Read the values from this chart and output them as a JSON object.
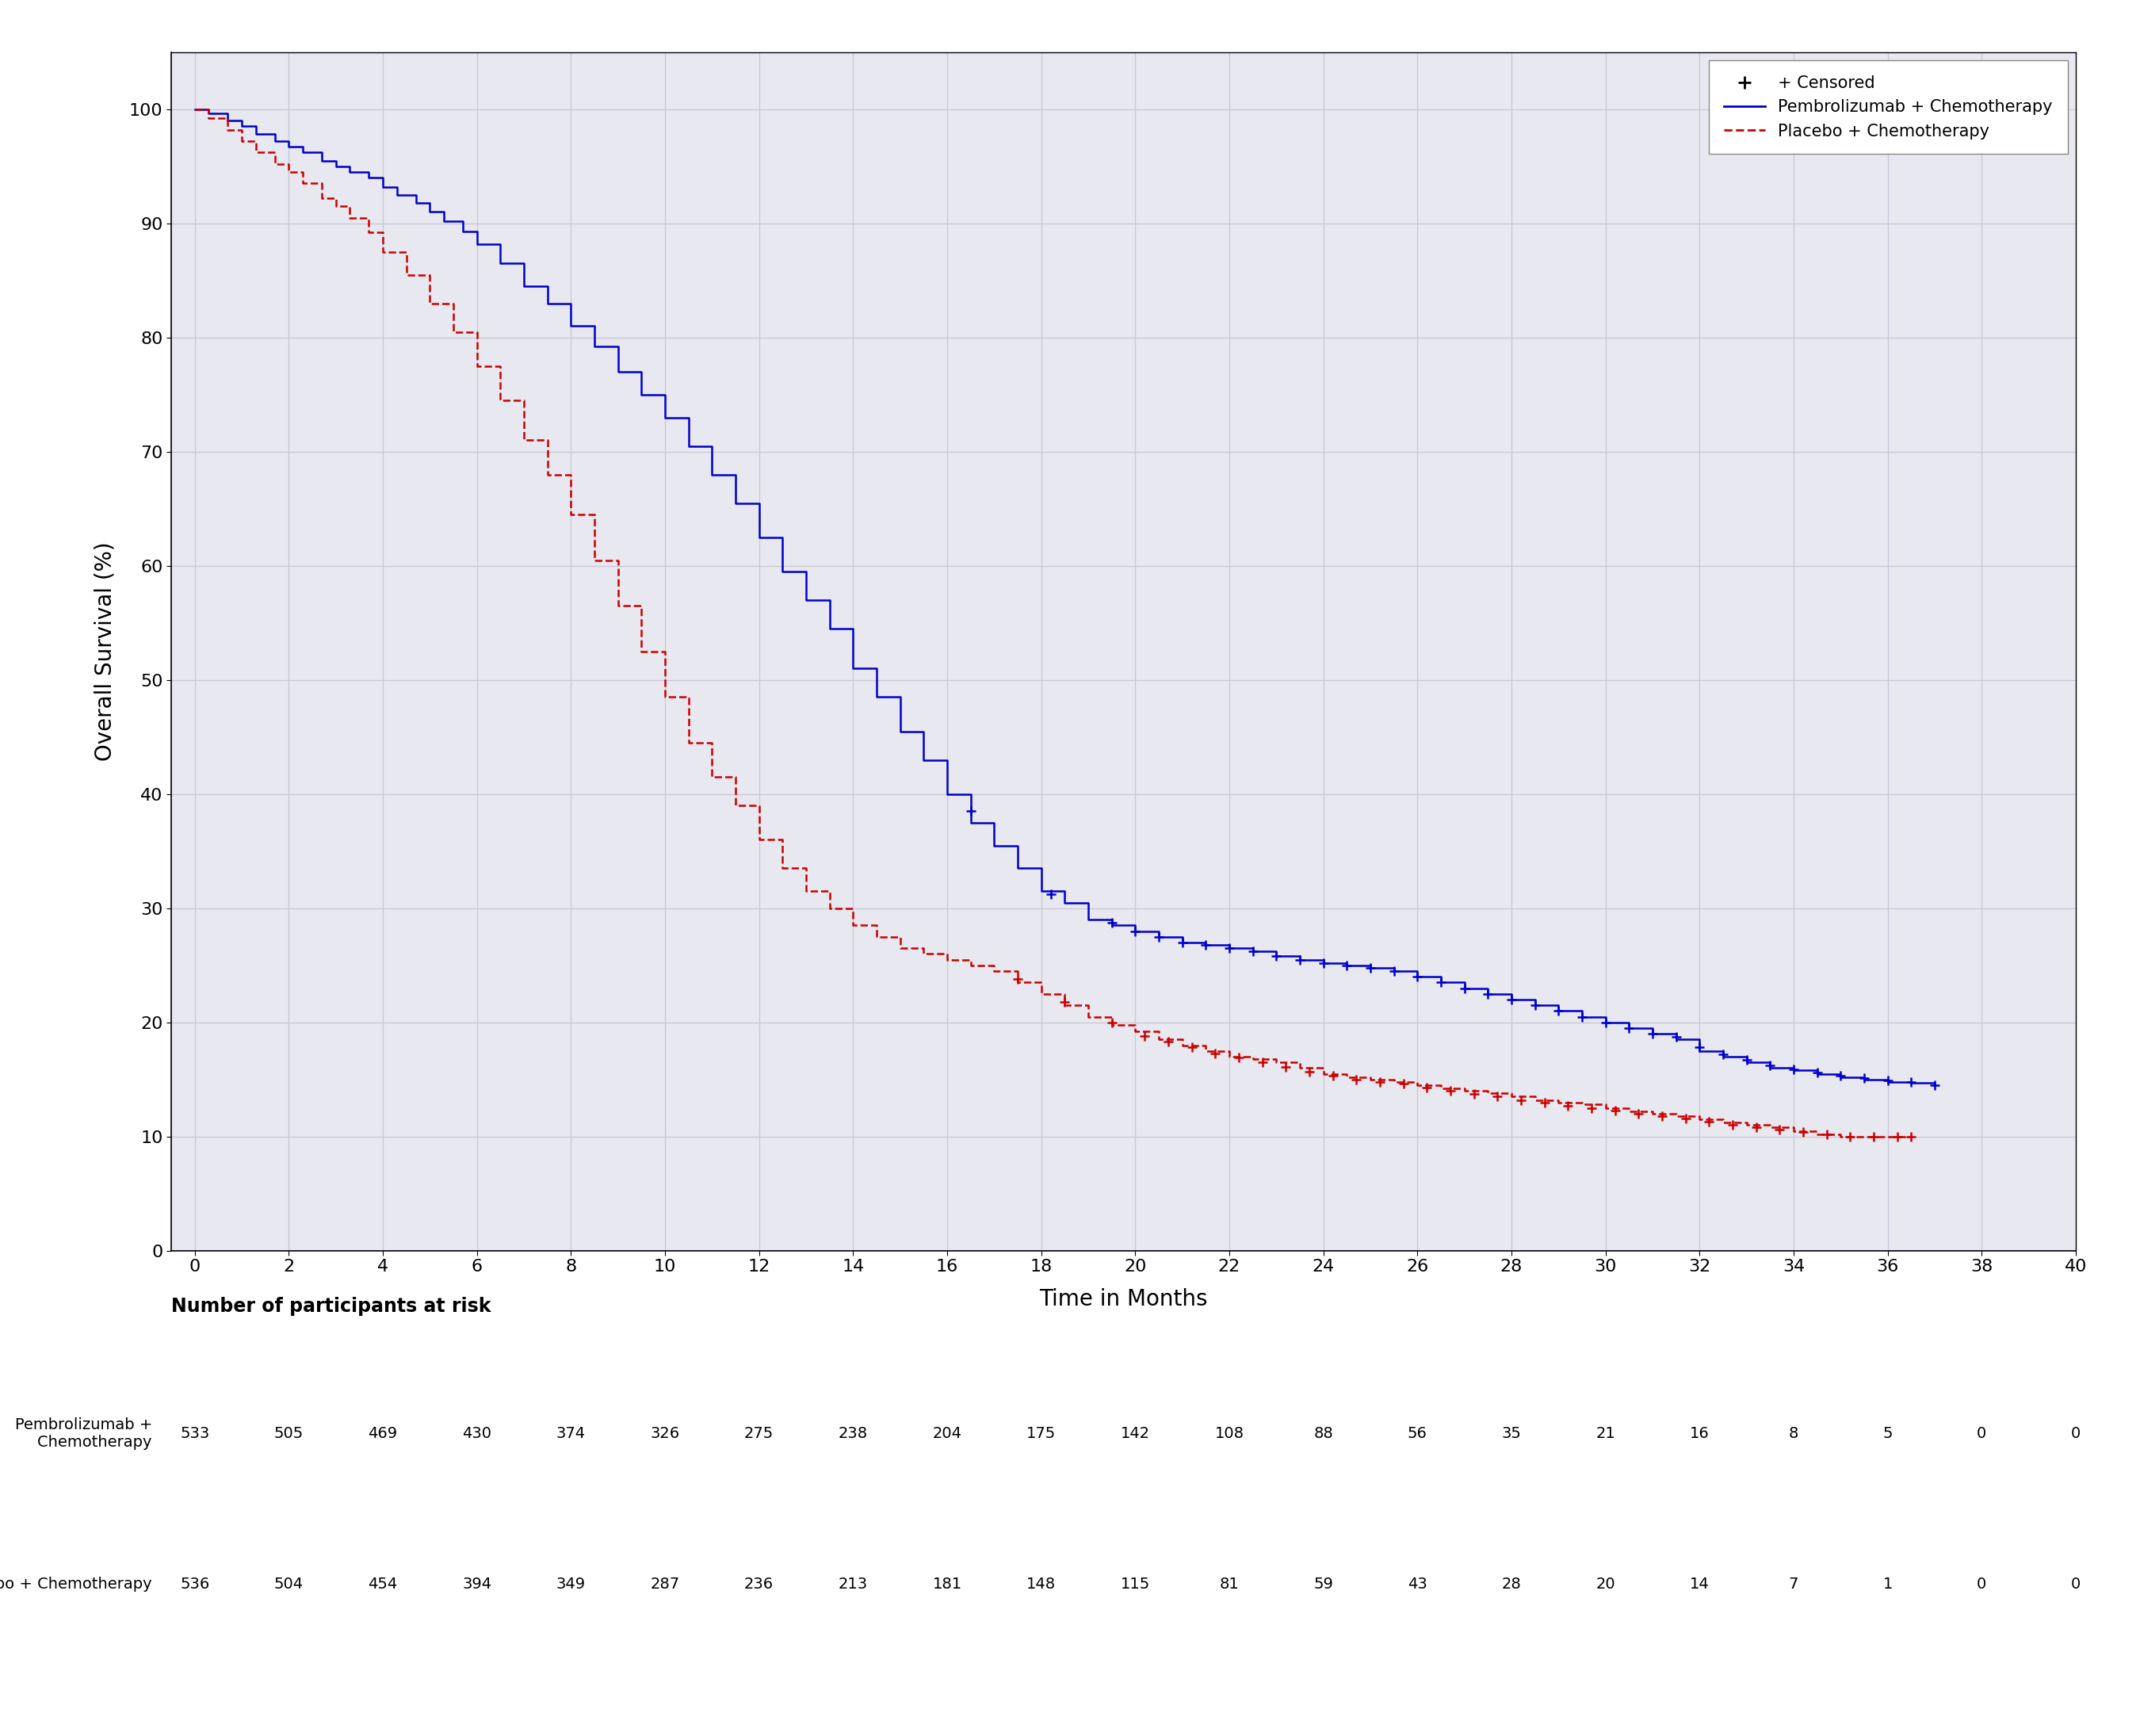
{
  "xlabel": "Time in Months",
  "ylabel": "Overall Survival (%)",
  "xlim": [
    -0.5,
    40
  ],
  "ylim": [
    0,
    105
  ],
  "xticks": [
    0,
    2,
    4,
    6,
    8,
    10,
    12,
    14,
    16,
    18,
    20,
    22,
    24,
    26,
    28,
    30,
    32,
    34,
    36,
    38,
    40
  ],
  "yticks": [
    0,
    10,
    20,
    30,
    40,
    50,
    60,
    70,
    80,
    90,
    100
  ],
  "pembro_color": "#0000CC",
  "placebo_color": "#CC0000",
  "background_color": "#e8e8f0",
  "at_risk_label": "Number of participants at risk",
  "pembro_label": "Pembrolizumab + Chemotherapy",
  "placebo_label": "Placebo + Chemotherapy",
  "pembro_label_wrapped": "Pembrolizumab +\n    Chemotherapy",
  "legend_censored": "+ Censored",
  "at_risk_times": [
    0,
    2,
    4,
    6,
    8,
    10,
    12,
    14,
    16,
    18,
    20,
    22,
    24,
    26,
    28,
    30,
    32,
    34,
    36,
    38,
    40
  ],
  "pembro_at_risk": [
    533,
    505,
    469,
    430,
    374,
    326,
    275,
    238,
    204,
    175,
    142,
    108,
    88,
    56,
    35,
    21,
    16,
    8,
    5,
    0,
    0
  ],
  "placebo_at_risk": [
    536,
    504,
    454,
    394,
    349,
    287,
    236,
    213,
    181,
    148,
    115,
    81,
    59,
    43,
    28,
    20,
    14,
    7,
    1,
    0,
    0
  ],
  "pembro_km_t": [
    0,
    0.3,
    0.7,
    1.0,
    1.3,
    1.7,
    2.0,
    2.3,
    2.7,
    3.0,
    3.3,
    3.7,
    4.0,
    4.3,
    4.7,
    5.0,
    5.3,
    5.7,
    6.0,
    6.5,
    7.0,
    7.5,
    8.0,
    8.5,
    9.0,
    9.5,
    10.0,
    10.5,
    11.0,
    11.5,
    12.0,
    12.5,
    13.0,
    13.5,
    14.0,
    14.5,
    15.0,
    15.5,
    16.0,
    16.5,
    17.0,
    17.5,
    18.0,
    18.5,
    19.0,
    19.5,
    20.0,
    20.5,
    21.0,
    21.5,
    22.0,
    22.5,
    23.0,
    23.5,
    24.0,
    24.5,
    25.0,
    25.5,
    26.0,
    26.5,
    27.0,
    27.5,
    28.0,
    28.5,
    29.0,
    29.5,
    30.0,
    30.5,
    31.0,
    31.5,
    32.0,
    32.5,
    33.0,
    33.5,
    34.0,
    34.5,
    35.0,
    35.5,
    36.0,
    36.5,
    37.0
  ],
  "pembro_km_s": [
    100,
    99.6,
    99.0,
    98.5,
    97.8,
    97.2,
    96.7,
    96.2,
    95.5,
    95.0,
    94.5,
    94.0,
    93.2,
    92.5,
    91.8,
    91.0,
    90.2,
    89.3,
    88.2,
    86.5,
    84.5,
    83.0,
    81.0,
    79.2,
    77.0,
    75.0,
    73.0,
    70.5,
    68.0,
    65.5,
    62.5,
    59.5,
    57.0,
    54.5,
    51.0,
    48.5,
    45.5,
    43.0,
    40.0,
    37.5,
    35.5,
    33.5,
    31.5,
    30.5,
    29.0,
    28.5,
    28.0,
    27.5,
    27.0,
    26.8,
    26.5,
    26.2,
    25.8,
    25.5,
    25.2,
    25.0,
    24.8,
    24.5,
    24.0,
    23.5,
    23.0,
    22.5,
    22.0,
    21.5,
    21.0,
    20.5,
    20.0,
    19.5,
    19.0,
    18.5,
    17.5,
    17.0,
    16.5,
    16.0,
    15.8,
    15.5,
    15.2,
    15.0,
    14.8,
    14.7,
    14.5
  ],
  "placebo_km_t": [
    0,
    0.3,
    0.7,
    1.0,
    1.3,
    1.7,
    2.0,
    2.3,
    2.7,
    3.0,
    3.3,
    3.7,
    4.0,
    4.5,
    5.0,
    5.5,
    6.0,
    6.5,
    7.0,
    7.5,
    8.0,
    8.5,
    9.0,
    9.5,
    10.0,
    10.5,
    11.0,
    11.5,
    12.0,
    12.5,
    13.0,
    13.5,
    14.0,
    14.5,
    15.0,
    15.5,
    16.0,
    16.5,
    17.0,
    17.5,
    18.0,
    18.5,
    19.0,
    19.5,
    20.0,
    20.5,
    21.0,
    21.5,
    22.0,
    22.5,
    23.0,
    23.5,
    24.0,
    24.5,
    25.0,
    25.5,
    26.0,
    26.5,
    27.0,
    27.5,
    28.0,
    28.5,
    29.0,
    29.5,
    30.0,
    30.5,
    31.0,
    31.5,
    32.0,
    32.5,
    33.0,
    33.5,
    34.0,
    34.5,
    35.0,
    35.5,
    36.0,
    36.5
  ],
  "placebo_km_s": [
    100,
    99.2,
    98.2,
    97.2,
    96.2,
    95.2,
    94.5,
    93.5,
    92.2,
    91.5,
    90.5,
    89.2,
    87.5,
    85.5,
    83.0,
    80.5,
    77.5,
    74.5,
    71.0,
    68.0,
    64.5,
    60.5,
    56.5,
    52.5,
    48.5,
    44.5,
    41.5,
    39.0,
    36.0,
    33.5,
    31.5,
    30.0,
    28.5,
    27.5,
    26.5,
    26.0,
    25.5,
    25.0,
    24.5,
    23.5,
    22.5,
    21.5,
    20.5,
    19.8,
    19.2,
    18.5,
    18.0,
    17.5,
    17.0,
    16.8,
    16.5,
    16.0,
    15.5,
    15.2,
    15.0,
    14.8,
    14.5,
    14.2,
    14.0,
    13.8,
    13.5,
    13.2,
    13.0,
    12.8,
    12.5,
    12.2,
    12.0,
    11.8,
    11.5,
    11.2,
    11.0,
    10.8,
    10.5,
    10.2,
    10.0,
    10.0,
    10.0,
    10.0
  ],
  "pembro_censors_t": [
    16.5,
    18.2,
    19.5,
    20.0,
    20.5,
    21.0,
    21.5,
    22.0,
    22.5,
    23.0,
    23.5,
    24.0,
    24.5,
    25.0,
    25.5,
    26.0,
    26.5,
    27.0,
    27.5,
    28.0,
    28.5,
    29.0,
    29.5,
    30.0,
    30.5,
    31.0,
    31.5,
    32.0,
    32.5,
    33.0,
    33.5,
    34.0,
    34.5,
    35.0,
    35.5,
    36.0,
    36.5,
    37.0
  ],
  "pembro_censors_s": [
    38.5,
    31.2,
    28.7,
    28.0,
    27.5,
    27.0,
    26.8,
    26.5,
    26.2,
    25.8,
    25.5,
    25.2,
    25.0,
    24.8,
    24.5,
    24.0,
    23.5,
    23.0,
    22.5,
    22.0,
    21.5,
    21.0,
    20.5,
    20.0,
    19.5,
    19.0,
    18.7,
    17.8,
    17.2,
    16.7,
    16.2,
    15.9,
    15.6,
    15.3,
    15.1,
    14.9,
    14.75,
    14.5
  ],
  "placebo_censors_t": [
    17.5,
    18.5,
    19.5,
    20.2,
    20.7,
    21.2,
    21.7,
    22.2,
    22.7,
    23.2,
    23.7,
    24.2,
    24.7,
    25.2,
    25.7,
    26.2,
    26.7,
    27.2,
    27.7,
    28.2,
    28.7,
    29.2,
    29.7,
    30.2,
    30.7,
    31.2,
    31.7,
    32.2,
    32.7,
    33.2,
    33.7,
    34.2,
    34.7,
    35.2,
    35.7,
    36.2,
    36.5
  ],
  "placebo_censors_s": [
    23.8,
    21.8,
    20.0,
    18.8,
    18.3,
    17.8,
    17.3,
    16.9,
    16.5,
    16.1,
    15.7,
    15.3,
    15.0,
    14.8,
    14.6,
    14.3,
    14.0,
    13.7,
    13.5,
    13.2,
    13.0,
    12.7,
    12.5,
    12.3,
    12.0,
    11.8,
    11.6,
    11.3,
    11.0,
    10.8,
    10.6,
    10.4,
    10.2,
    10.0,
    10.0,
    10.0,
    10.0
  ]
}
